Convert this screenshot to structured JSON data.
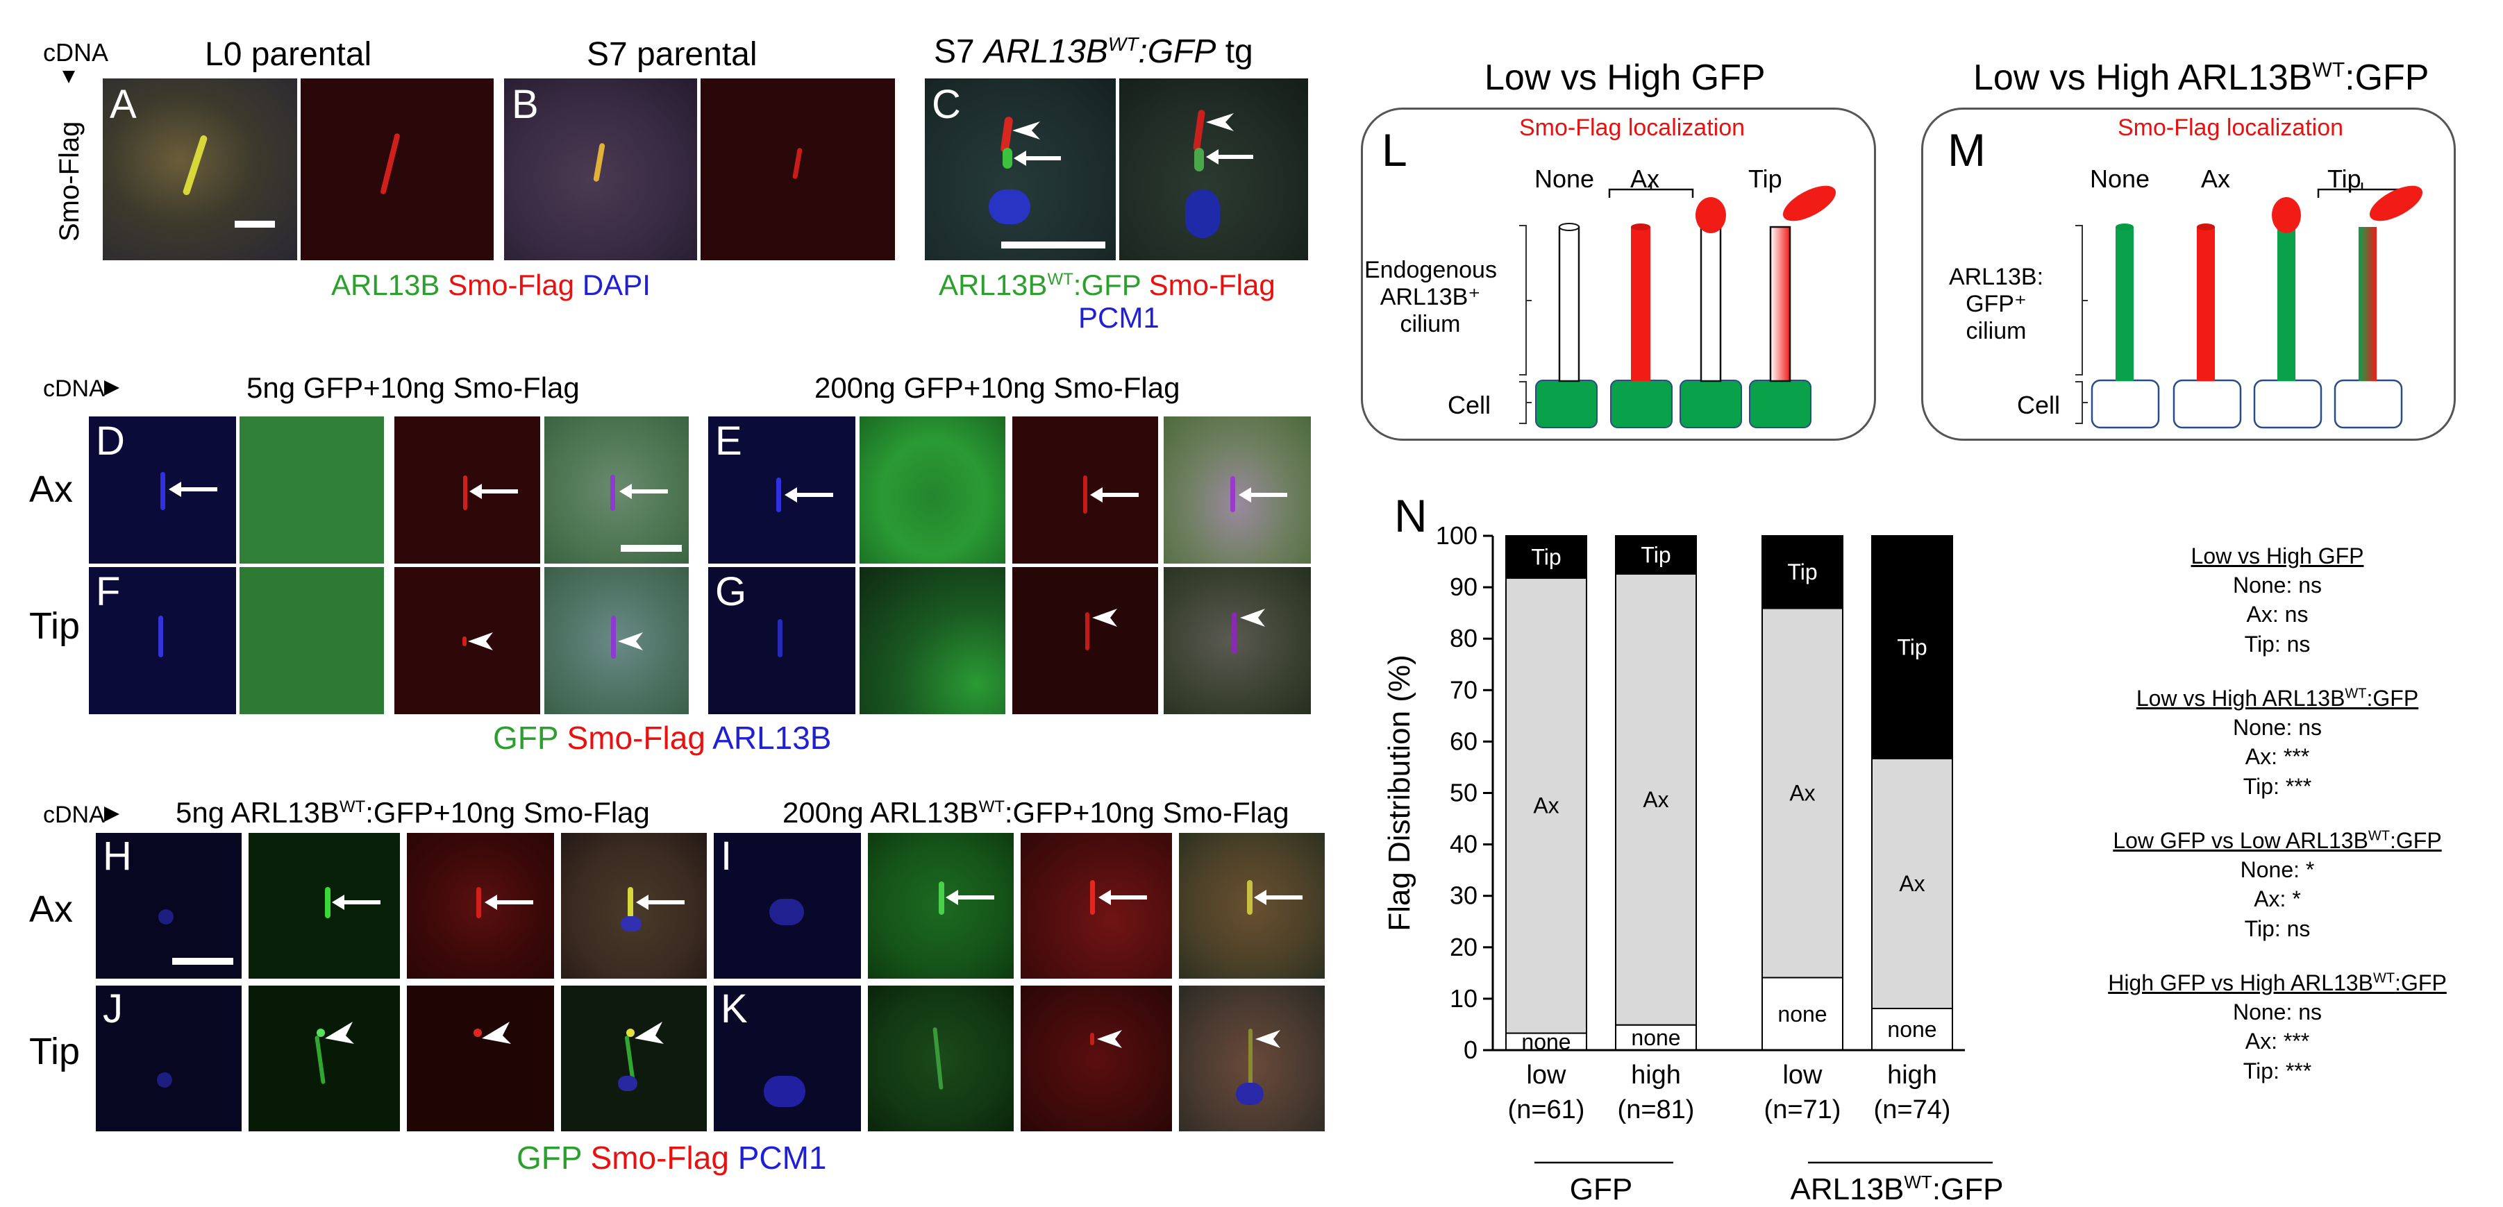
{
  "header": {
    "cdna": "cDNA",
    "smo_flag": "Smo-Flag",
    "col_a": "L0 parental",
    "col_b": "S7 parental",
    "col_c_prefix": "S7 ",
    "col_c_gene": "ARL13B",
    "col_c_sup": "WT",
    "col_c_suffix": ":GFP",
    "col_c_tg": " tg"
  },
  "panels": {
    "A": "A",
    "B": "B",
    "C": "C",
    "D": "D",
    "E": "E",
    "F": "F",
    "G": "G",
    "H": "H",
    "I": "I",
    "J": "J",
    "K": "K",
    "L": "L",
    "M": "M",
    "N": "N"
  },
  "legends": {
    "abc_green": "ARL13B",
    "abc_red": "Smo-Flag",
    "abc_blue": "DAPI",
    "c_green": "ARL13B",
    "c_green_sup": "WT",
    "c_green_suffix": ":GFP",
    "c_red": "Smo-Flag",
    "c_blue": "PCM1",
    "dg_green": "GFP",
    "dg_red": "Smo-Flag",
    "dg_blue": "ARL13B",
    "hk_green": "GFP",
    "hk_red": "Smo-Flag",
    "hk_blue": "PCM1"
  },
  "middle": {
    "cdna": "cDNA",
    "title_d": "5ng GFP+10ng Smo-Flag",
    "title_e": "200ng GFP+10ng Smo-Flag",
    "row_ax": "Ax",
    "row_tip": "Tip"
  },
  "bottom": {
    "cdna": "cDNA",
    "title_h_pre": "5ng ARL13B",
    "title_h_sup": "WT",
    "title_h_post": ":GFP+10ng Smo-Flag",
    "title_i_pre": "200ng ARL13B",
    "title_i_sup": "WT",
    "title_i_post": ":GFP+10ng Smo-Flag",
    "row_ax": "Ax",
    "row_tip": "Tip"
  },
  "schematic_l": {
    "title": "Low vs High GFP",
    "subtitle": "Smo-Flag localization",
    "cols": [
      "None",
      "Ax",
      "Tip"
    ],
    "side_label": [
      "Endogenous",
      "ARL13B⁺",
      "cilium"
    ],
    "cell_label": "Cell"
  },
  "schematic_m": {
    "title_pre": "Low vs High ARL13B",
    "title_sup": "WT",
    "title_post": ":GFP",
    "subtitle": "Smo-Flag localization",
    "cols": [
      "None",
      "Ax",
      "Tip"
    ],
    "side_label": [
      "ARL13B:",
      "GFP⁺",
      "cilium"
    ],
    "cell_label": "Cell"
  },
  "colors": {
    "green": "#0aa14b",
    "red": "#f21c17",
    "gray": "#d9d9d9",
    "black": "#000000"
  },
  "chart_data": {
    "type": "bar",
    "stacked": true,
    "ylabel": "Flag Distribution (%)",
    "ylim": [
      0,
      100
    ],
    "yticks": [
      0,
      10,
      20,
      30,
      40,
      50,
      60,
      70,
      80,
      90,
      100
    ],
    "categories": [
      "low\n(n=61)",
      "high\n(n=81)",
      "low\n(n=71)",
      "high\n(n=74)"
    ],
    "cat_line1": [
      "low",
      "high",
      "low",
      "high"
    ],
    "cat_line2": [
      "(n=61)",
      "(n=81)",
      "(n=71)",
      "(n=74)"
    ],
    "groups": [
      {
        "label": "GFP",
        "members": [
          0,
          1
        ]
      },
      {
        "label_pre": "ARL13B",
        "label_sup": "WT",
        "label_post": ":GFP",
        "members": [
          2,
          3
        ]
      }
    ],
    "series": [
      {
        "name": "none",
        "values": [
          3.3,
          4.9,
          14.1,
          8.1
        ]
      },
      {
        "name": "Ax",
        "values": [
          88.5,
          87.7,
          71.8,
          48.6
        ]
      },
      {
        "name": "Tip",
        "values": [
          8.2,
          7.4,
          14.1,
          43.3
        ]
      }
    ]
  },
  "stats": [
    {
      "head_pre": "Low vs High GFP",
      "head_sup": "",
      "head_post": "",
      "lines": [
        "None: ns",
        "Ax: ns",
        "Tip: ns"
      ]
    },
    {
      "head_pre": "Low vs High ARL13B",
      "head_sup": "WT",
      "head_post": ":GFP",
      "lines": [
        "None: ns",
        "Ax: ***",
        "Tip: ***"
      ]
    },
    {
      "head_pre": "Low GFP vs Low ARL13B",
      "head_sup": "WT",
      "head_post": ":GFP",
      "lines": [
        "None: *",
        "Ax: *",
        "Tip: ns"
      ]
    },
    {
      "head_pre": "High GFP vs High ARL13B",
      "head_sup": "WT",
      "head_post": ":GFP",
      "lines": [
        "None: ns",
        "Ax: ***",
        "Tip: ***"
      ]
    }
  ]
}
